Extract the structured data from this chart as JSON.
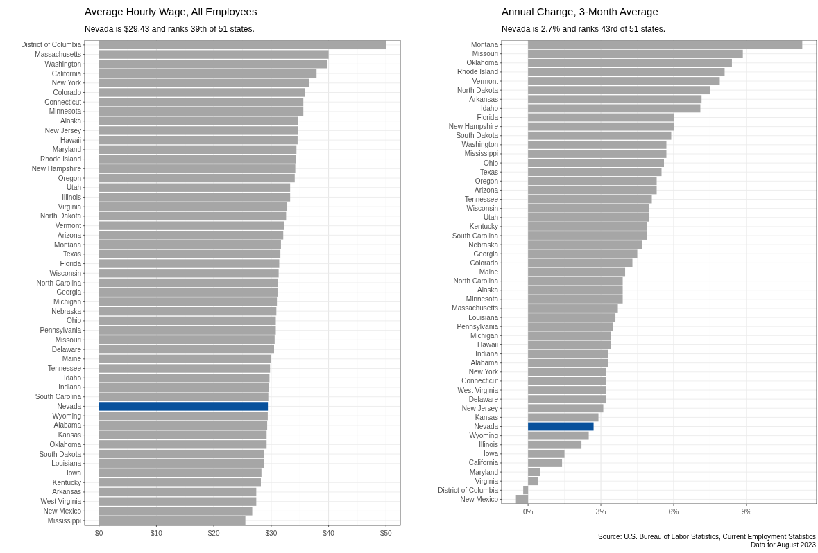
{
  "chart_data": [
    {
      "type": "bar",
      "orientation": "horizontal",
      "title": "Average Hourly Wage, All Employees",
      "subtitle": "Nevada is $29.43 and ranks 39th of 51 states.",
      "categories": [
        "District of Columbia",
        "Massachusetts",
        "Washington",
        "California",
        "New York",
        "Colorado",
        "Connecticut",
        "Minnesota",
        "Alaska",
        "New Jersey",
        "Hawaii",
        "Maryland",
        "Rhode Island",
        "New Hampshire",
        "Oregon",
        "Utah",
        "Illinois",
        "Virginia",
        "North Dakota",
        "Vermont",
        "Arizona",
        "Montana",
        "Texas",
        "Florida",
        "Wisconsin",
        "North Carolina",
        "Georgia",
        "Michigan",
        "Nebraska",
        "Ohio",
        "Pennsylvania",
        "Missouri",
        "Delaware",
        "Maine",
        "Tennessee",
        "Idaho",
        "Indiana",
        "South Carolina",
        "Nevada",
        "Wyoming",
        "Alabama",
        "Kansas",
        "Oklahoma",
        "South Dakota",
        "Louisiana",
        "Iowa",
        "Kentucky",
        "Arkansas",
        "West Virginia",
        "New Mexico",
        "Mississippi"
      ],
      "values": [
        50.0,
        40.0,
        39.7,
        37.9,
        36.6,
        35.9,
        35.6,
        35.6,
        34.7,
        34.7,
        34.6,
        34.4,
        34.3,
        34.2,
        34.1,
        33.3,
        33.3,
        32.8,
        32.6,
        32.3,
        32.1,
        31.7,
        31.6,
        31.4,
        31.3,
        31.2,
        31.1,
        31.0,
        30.9,
        30.8,
        30.8,
        30.6,
        30.5,
        29.9,
        29.8,
        29.7,
        29.6,
        29.5,
        29.43,
        29.4,
        29.3,
        29.2,
        29.2,
        28.7,
        28.7,
        28.3,
        28.2,
        27.4,
        27.4,
        26.7,
        25.5
      ],
      "colors": [
        "#a6a6a6",
        "#a6a6a6",
        "#a6a6a6",
        "#a6a6a6",
        "#a6a6a6",
        "#a6a6a6",
        "#a6a6a6",
        "#a6a6a6",
        "#a6a6a6",
        "#a6a6a6",
        "#a6a6a6",
        "#a6a6a6",
        "#a6a6a6",
        "#a6a6a6",
        "#a6a6a6",
        "#a6a6a6",
        "#a6a6a6",
        "#a6a6a6",
        "#a6a6a6",
        "#a6a6a6",
        "#a6a6a6",
        "#a6a6a6",
        "#a6a6a6",
        "#a6a6a6",
        "#a6a6a6",
        "#a6a6a6",
        "#a6a6a6",
        "#a6a6a6",
        "#a6a6a6",
        "#a6a6a6",
        "#a6a6a6",
        "#a6a6a6",
        "#a6a6a6",
        "#a6a6a6",
        "#a6a6a6",
        "#a6a6a6",
        "#a6a6a6",
        "#a6a6a6",
        "#08519c",
        "#a6a6a6",
        "#a6a6a6",
        "#a6a6a6",
        "#a6a6a6",
        "#a6a6a6",
        "#a6a6a6",
        "#a6a6a6",
        "#a6a6a6",
        "#a6a6a6",
        "#a6a6a6",
        "#a6a6a6",
        "#a6a6a6"
      ],
      "xlim": [
        -2.5,
        52.5
      ],
      "xticks": [
        {
          "value": 0,
          "label": "$0"
        },
        {
          "value": 10,
          "label": "$10"
        },
        {
          "value": 20,
          "label": "$20"
        },
        {
          "value": 30,
          "label": "$30"
        },
        {
          "value": 40,
          "label": "$40"
        },
        {
          "value": 50,
          "label": "$50"
        }
      ],
      "grid": true
    },
    {
      "type": "bar",
      "orientation": "horizontal",
      "title": "Annual Change, 3-Month Average",
      "subtitle": "Nevada is 2.7% and ranks 43rd of 51 states.",
      "categories": [
        "Montana",
        "Missouri",
        "Oklahoma",
        "Rhode Island",
        "Vermont",
        "North Dakota",
        "Arkansas",
        "Idaho",
        "Florida",
        "New Hampshire",
        "South Dakota",
        "Washington",
        "Mississippi",
        "Ohio",
        "Texas",
        "Oregon",
        "Arizona",
        "Tennessee",
        "Wisconsin",
        "Utah",
        "Kentucky",
        "South Carolina",
        "Nebraska",
        "Georgia",
        "Colorado",
        "Maine",
        "North Carolina",
        "Alaska",
        "Minnesota",
        "Massachusetts",
        "Louisiana",
        "Pennsylvania",
        "Michigan",
        "Hawaii",
        "Indiana",
        "Alabama",
        "New York",
        "Connecticut",
        "West Virginia",
        "Delaware",
        "New Jersey",
        "Kansas",
        "Nevada",
        "Wyoming",
        "Illinois",
        "Iowa",
        "California",
        "Maryland",
        "Virginia",
        "District of Columbia",
        "New Mexico"
      ],
      "values": [
        11.3,
        8.85,
        8.4,
        8.1,
        7.9,
        7.5,
        7.15,
        7.1,
        6.0,
        6.0,
        5.9,
        5.7,
        5.7,
        5.6,
        5.5,
        5.3,
        5.3,
        5.1,
        5.0,
        5.0,
        4.9,
        4.9,
        4.7,
        4.5,
        4.3,
        4.0,
        3.9,
        3.9,
        3.9,
        3.7,
        3.6,
        3.5,
        3.4,
        3.4,
        3.3,
        3.3,
        3.2,
        3.2,
        3.2,
        3.2,
        3.1,
        2.9,
        2.7,
        2.5,
        2.2,
        1.5,
        1.4,
        0.5,
        0.4,
        -0.2,
        -0.5
      ],
      "colors": [
        "#a6a6a6",
        "#a6a6a6",
        "#a6a6a6",
        "#a6a6a6",
        "#a6a6a6",
        "#a6a6a6",
        "#a6a6a6",
        "#a6a6a6",
        "#a6a6a6",
        "#a6a6a6",
        "#a6a6a6",
        "#a6a6a6",
        "#a6a6a6",
        "#a6a6a6",
        "#a6a6a6",
        "#a6a6a6",
        "#a6a6a6",
        "#a6a6a6",
        "#a6a6a6",
        "#a6a6a6",
        "#a6a6a6",
        "#a6a6a6",
        "#a6a6a6",
        "#a6a6a6",
        "#a6a6a6",
        "#a6a6a6",
        "#a6a6a6",
        "#a6a6a6",
        "#a6a6a6",
        "#a6a6a6",
        "#a6a6a6",
        "#a6a6a6",
        "#a6a6a6",
        "#a6a6a6",
        "#a6a6a6",
        "#a6a6a6",
        "#a6a6a6",
        "#a6a6a6",
        "#a6a6a6",
        "#a6a6a6",
        "#a6a6a6",
        "#a6a6a6",
        "#08519c",
        "#a6a6a6",
        "#a6a6a6",
        "#a6a6a6",
        "#a6a6a6",
        "#a6a6a6",
        "#a6a6a6",
        "#a6a6a6",
        "#a6a6a6"
      ],
      "xlim": [
        -1.09,
        11.89
      ],
      "xticks": [
        {
          "value": 0,
          "label": "0%"
        },
        {
          "value": 3,
          "label": "3%"
        },
        {
          "value": 6,
          "label": "6%"
        },
        {
          "value": 9,
          "label": "9%"
        }
      ],
      "grid": true,
      "annotations": [
        "Source: U.S. Bureau of Labor Statistics, Current Employment Statistics",
        "Data for August 2023"
      ]
    }
  ]
}
